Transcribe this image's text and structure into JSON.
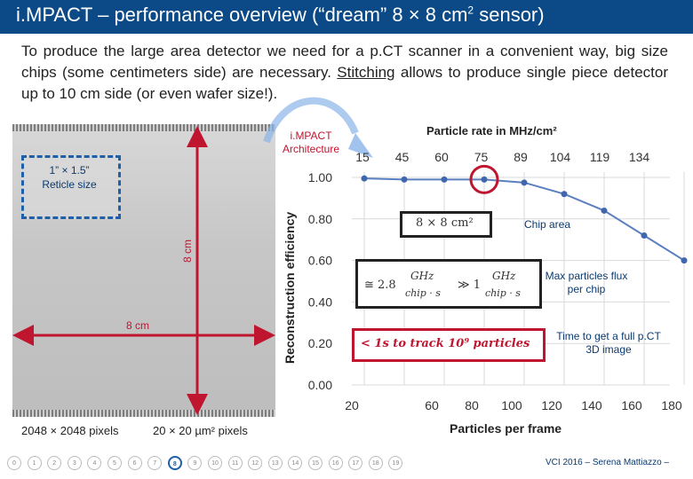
{
  "header": {
    "title_accent": "i.MPACT",
    "title_rest": " – performance overview (“dream” 8 × 8 cm",
    "title_sup": "2",
    "title_end": " sensor)"
  },
  "intro": {
    "before": "To produce the large area detector we need for a p.CT scanner in a convenient way, big size chips (some centimeters side) are necessary. ",
    "link": "Stitching",
    "after": " allows to produce single piece detector up to 10 cm side (or even wafer size!)."
  },
  "chip": {
    "reticle_label_1": "1” × 1.5”",
    "reticle_label_2": "Reticle size",
    "width_label": "8 cm",
    "height_label": "8 cm",
    "pixels_label": "2048 × 2048 pixels",
    "pitch_label": "20 × 20 µm² pixels"
  },
  "architecture": {
    "line1": "i.MPACT",
    "line2": "Architecture"
  },
  "annotations": {
    "chip_area_box": "8 × 8 cm²",
    "chip_area": "Chip area",
    "flux_box_a": "≅ 2.8",
    "flux_box_b": "GHz",
    "flux_box_c": "chip · s",
    "flux_box_d": "≫ 1",
    "flux_box_e": "GHz",
    "flux_box_f": "chip · s",
    "flux": "Max particles flux per chip",
    "time_box": "< 1s to track 10⁹ particles",
    "time": "Time to get a full p.CT 3D image"
  },
  "chart_data": {
    "type": "line",
    "title": "Particle rate in MHz/cm²",
    "xlabel": "Particles per frame",
    "ylabel": "Reconstruction efficiency",
    "x": [
      20,
      40,
      60,
      80,
      100,
      120,
      140,
      160,
      180
    ],
    "x_ticks": [
      "20",
      "60",
      "80",
      "100",
      "120",
      "140",
      "160",
      "180"
    ],
    "top_ticks": [
      "15",
      "45",
      "60",
      "75",
      "89",
      "104",
      "119",
      "134"
    ],
    "y_ticks": [
      "1.00",
      "0.80",
      "0.60",
      "0.40",
      "0.20",
      "0.00"
    ],
    "ylim": [
      0,
      1.0
    ],
    "xlim": [
      20,
      180
    ],
    "series": [
      {
        "values": [
          0.995,
          0.99,
          0.99,
          0.99,
          0.975,
          0.92,
          0.84,
          0.72,
          0.6
        ]
      }
    ],
    "colors": {
      "line": "#5b7fbf",
      "marker": "#3e67ad",
      "highlight": "#c0152f",
      "grid": "#d9d9d9"
    }
  },
  "pager": {
    "pages": [
      "0",
      "1",
      "2",
      "3",
      "4",
      "5",
      "6",
      "7",
      "8",
      "9",
      "10",
      "11",
      "12",
      "13",
      "14",
      "15",
      "16",
      "17",
      "18",
      "19"
    ],
    "current": "8"
  },
  "credit": "VCI 2016 – Serena Mattiazzo –"
}
